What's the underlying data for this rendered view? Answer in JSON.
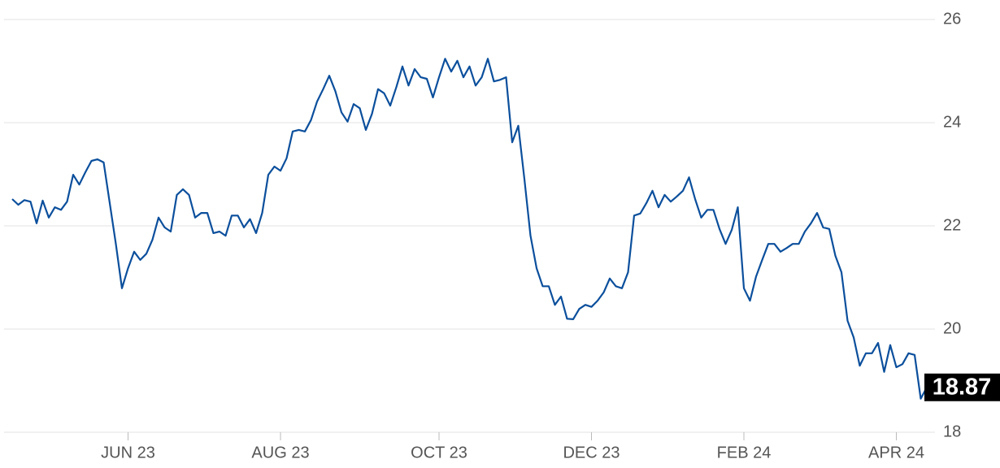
{
  "chart_data": {
    "type": "line",
    "categories": [
      null,
      null,
      null,
      null,
      null,
      null,
      null,
      null,
      null,
      null,
      null,
      null,
      null,
      null,
      null,
      null,
      null,
      null,
      null,
      "JUN 23",
      null,
      null,
      null,
      null,
      null,
      null,
      null,
      null,
      null,
      null,
      null,
      null,
      null,
      null,
      null,
      null,
      null,
      null,
      null,
      null,
      null,
      null,
      null,
      null,
      "AUG 23",
      null,
      null,
      null,
      null,
      null,
      null,
      null,
      null,
      null,
      null,
      null,
      null,
      null,
      null,
      null,
      null,
      null,
      null,
      null,
      null,
      null,
      null,
      null,
      null,
      null,
      "OCT 23",
      null,
      null,
      null,
      null,
      null,
      null,
      null,
      null,
      null,
      null,
      null,
      null,
      null,
      null,
      null,
      null,
      null,
      null,
      null,
      null,
      null,
      null,
      null,
      null,
      "DEC 23",
      null,
      null,
      null,
      null,
      null,
      null,
      null,
      null,
      null,
      null,
      null,
      null,
      null,
      null,
      null,
      null,
      null,
      null,
      null,
      null,
      null,
      null,
      null,
      null,
      "FEB 24",
      null,
      null,
      null,
      null,
      null,
      null,
      null,
      null,
      null,
      null,
      null,
      null,
      null,
      null,
      null,
      null,
      null,
      null,
      null,
      null,
      null,
      null,
      null,
      null,
      "APR 24",
      null,
      null,
      null,
      null,
      null
    ],
    "series": [
      {
        "color": "#0b4f9c",
        "values": [
          22.52,
          22.41,
          22.5,
          22.47,
          22.05,
          22.49,
          22.16,
          22.36,
          22.31,
          22.47,
          22.99,
          22.8,
          23.04,
          23.26,
          23.29,
          23.23,
          22.44,
          21.65,
          20.79,
          21.18,
          21.5,
          21.34,
          21.46,
          21.73,
          22.16,
          21.97,
          21.89,
          22.6,
          22.71,
          22.6,
          22.16,
          22.25,
          22.25,
          21.86,
          21.89,
          21.81,
          22.2,
          22.2,
          21.97,
          22.13,
          21.86,
          22.25,
          22.99,
          23.15,
          23.07,
          23.31,
          23.83,
          23.86,
          23.83,
          24.05,
          24.41,
          24.65,
          24.91,
          24.61,
          24.2,
          24.02,
          24.36,
          24.28,
          23.86,
          24.17,
          24.65,
          24.57,
          24.33,
          24.69,
          25.09,
          24.72,
          25.04,
          24.88,
          24.85,
          24.49,
          24.88,
          25.24,
          24.99,
          25.2,
          24.88,
          25.09,
          24.72,
          24.88,
          25.24,
          24.8,
          24.83,
          24.88,
          23.62,
          23.94,
          22.91,
          21.81,
          21.18,
          20.83,
          20.83,
          20.47,
          20.63,
          20.2,
          20.19,
          20.39,
          20.47,
          20.43,
          20.55,
          20.71,
          20.98,
          20.83,
          20.79,
          21.1,
          22.2,
          22.24,
          22.44,
          22.68,
          22.36,
          22.6,
          22.47,
          22.57,
          22.68,
          22.94,
          22.52,
          22.16,
          22.31,
          22.31,
          21.94,
          21.65,
          21.92,
          22.36,
          20.79,
          20.55,
          21.02,
          21.34,
          21.65,
          21.65,
          21.5,
          21.57,
          21.65,
          21.65,
          21.89,
          22.05,
          22.25,
          21.97,
          21.94,
          21.42,
          21.1,
          20.16,
          19.84,
          19.29,
          19.53,
          19.53,
          19.73,
          19.17,
          19.69,
          19.26,
          19.32,
          19.53,
          19.5,
          18.65,
          18.87
        ]
      }
    ],
    "ylim": [
      18,
      26
    ],
    "yticks": [
      18,
      20,
      22,
      24,
      26
    ],
    "grid": true
  }
}
